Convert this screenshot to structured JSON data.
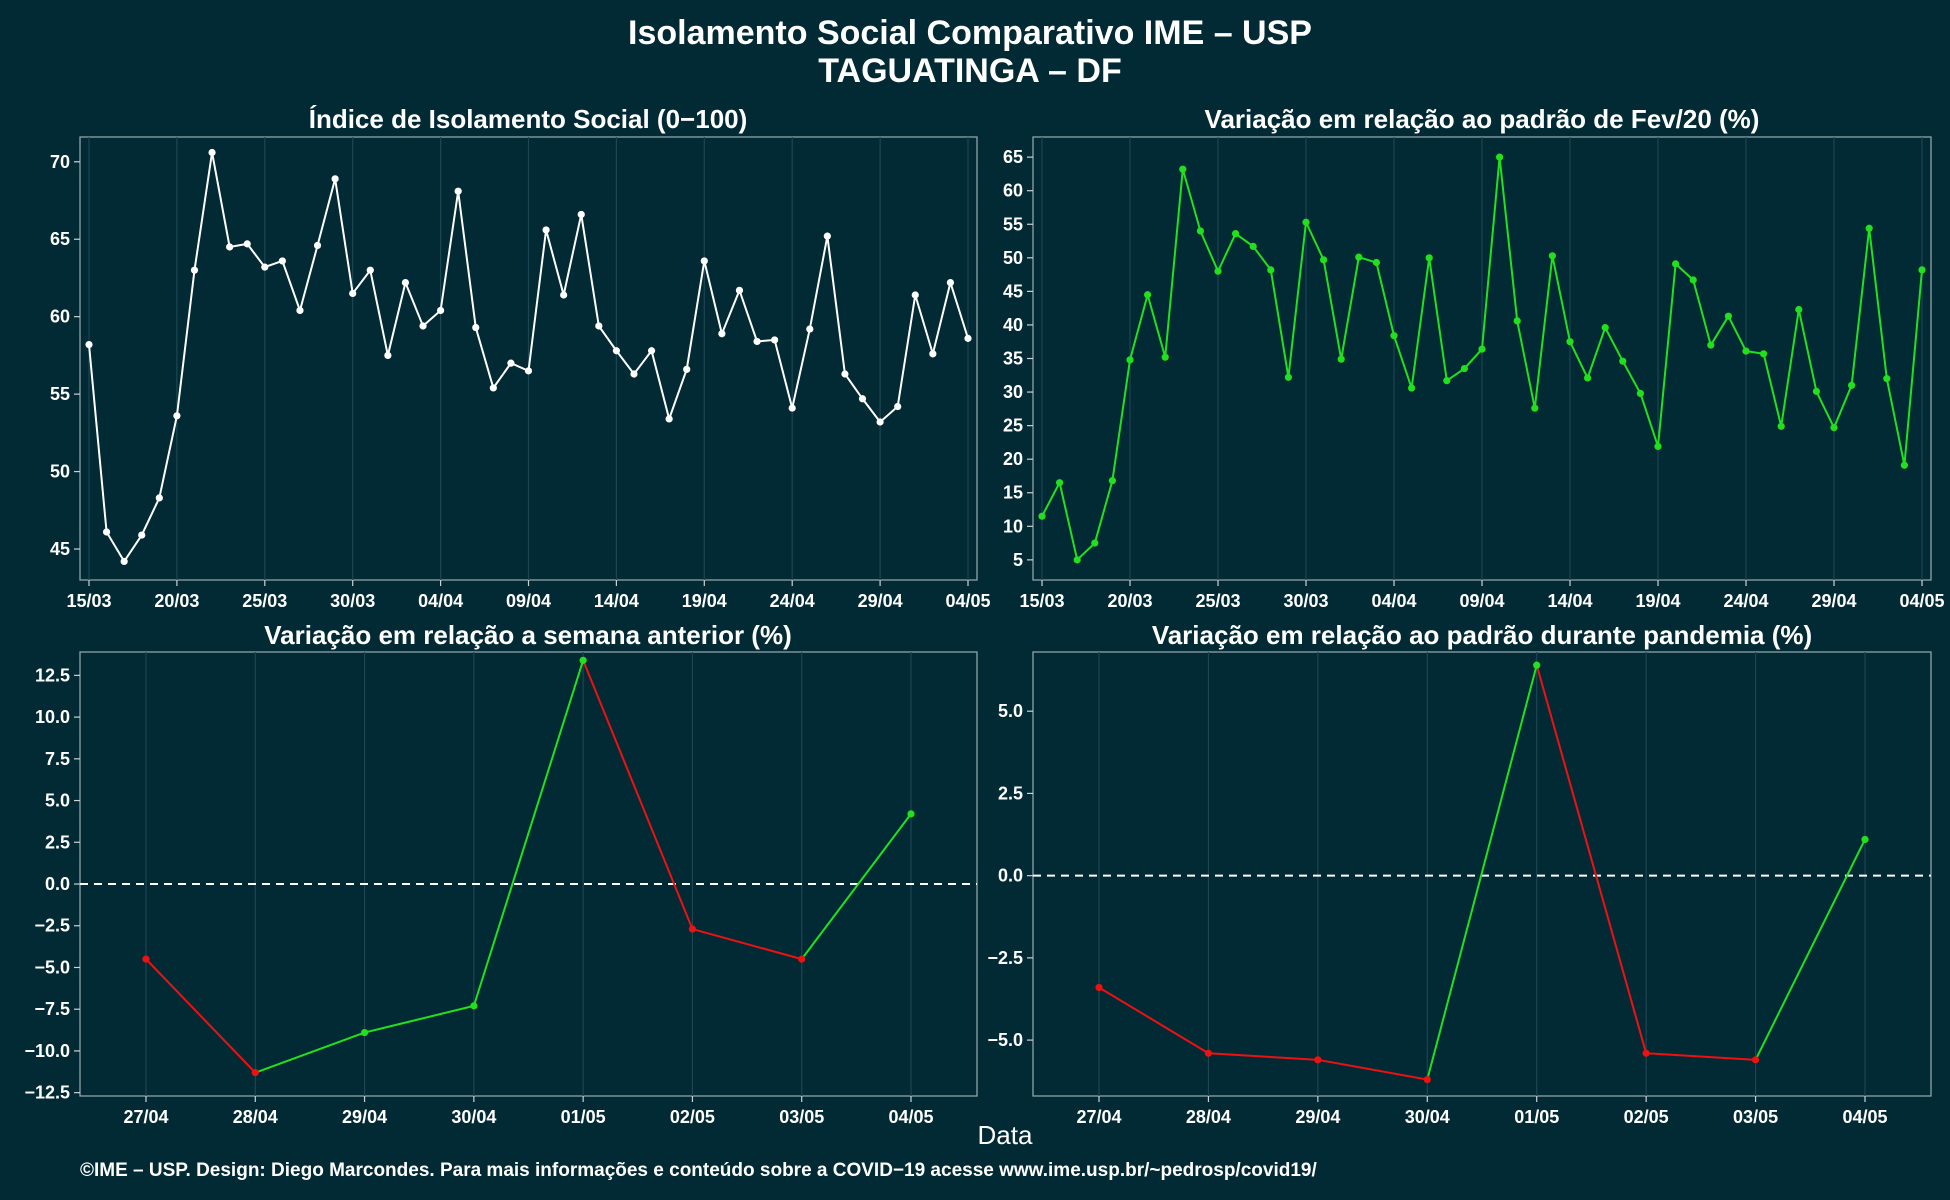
{
  "header": {
    "title_line1": "Isolamento Social Comparativo IME – USP",
    "title_line2": "TAGUATINGA – DF"
  },
  "x_axis_label": "Data",
  "caption": "©IME – USP. Design: Diego Marcondes. Para mais informações e conteúdo sobre a COVID−19 acesse www.ime.usp.br/~pedrosp/covid19/",
  "colors": {
    "background": "#022a35",
    "white_series": "#ffffff",
    "green_series": "#22e01c",
    "increase": "#22e01c",
    "decrease": "#ee1111"
  },
  "chart_data": [
    {
      "id": "index",
      "type": "line",
      "title": "Índice de Isolamento Social (0−100)",
      "color": "#ffffff",
      "x": [
        "15/03",
        "16/03",
        "17/03",
        "18/03",
        "19/03",
        "20/03",
        "21/03",
        "22/03",
        "23/03",
        "24/03",
        "25/03",
        "26/03",
        "27/03",
        "28/03",
        "29/03",
        "30/03",
        "31/03",
        "01/04",
        "02/04",
        "03/04",
        "04/04",
        "05/04",
        "06/04",
        "07/04",
        "08/04",
        "09/04",
        "10/04",
        "11/04",
        "12/04",
        "13/04",
        "14/04",
        "15/04",
        "16/04",
        "17/04",
        "18/04",
        "19/04",
        "20/04",
        "21/04",
        "22/04",
        "23/04",
        "24/04",
        "25/04",
        "26/04",
        "27/04",
        "28/04",
        "29/04",
        "30/04",
        "01/05",
        "02/05",
        "03/05",
        "04/05"
      ],
      "values": [
        58.2,
        46.1,
        44.2,
        45.9,
        48.3,
        53.6,
        63.0,
        70.6,
        64.5,
        64.7,
        63.2,
        63.6,
        60.4,
        64.6,
        68.9,
        61.5,
        63.0,
        57.5,
        62.2,
        59.4,
        60.4,
        68.1,
        59.3,
        55.4,
        57.0,
        56.5,
        65.6,
        61.4,
        66.6,
        59.4,
        57.8,
        56.3,
        57.8,
        53.4,
        56.6,
        63.6,
        58.9,
        61.7,
        58.4,
        58.5,
        54.1,
        59.2,
        65.2,
        56.3,
        54.7,
        53.2,
        54.2,
        61.4,
        57.6,
        62.2,
        58.6
      ],
      "xticks": [
        "15/03",
        "20/03",
        "25/03",
        "30/03",
        "04/04",
        "09/04",
        "14/04",
        "19/04",
        "24/04",
        "29/04",
        "04/05"
      ],
      "yticks": [
        45,
        50,
        55,
        60,
        65,
        70
      ],
      "ylim": [
        43.0,
        71.6
      ]
    },
    {
      "id": "feb",
      "type": "line",
      "title": "Variação em relação ao padrão de Fev/20 (%)",
      "color": "#22e01c",
      "x": [
        "15/03",
        "16/03",
        "17/03",
        "18/03",
        "19/03",
        "20/03",
        "21/03",
        "22/03",
        "23/03",
        "24/03",
        "25/03",
        "26/03",
        "27/03",
        "28/03",
        "29/03",
        "30/03",
        "31/03",
        "01/04",
        "02/04",
        "03/04",
        "04/04",
        "05/04",
        "06/04",
        "07/04",
        "08/04",
        "09/04",
        "10/04",
        "11/04",
        "12/04",
        "13/04",
        "14/04",
        "15/04",
        "16/04",
        "17/04",
        "18/04",
        "19/04",
        "20/04",
        "21/04",
        "22/04",
        "23/04",
        "24/04",
        "25/04",
        "26/04",
        "27/04",
        "28/04",
        "29/04",
        "30/04",
        "01/05",
        "02/05",
        "03/05",
        "04/05"
      ],
      "values": [
        11.5,
        16.5,
        5.0,
        7.5,
        16.8,
        34.8,
        44.5,
        35.2,
        63.2,
        54.0,
        48.0,
        53.6,
        51.7,
        48.2,
        32.2,
        55.3,
        49.7,
        34.9,
        50.1,
        49.3,
        38.4,
        30.6,
        50.0,
        31.7,
        33.5,
        36.4,
        65.0,
        40.6,
        27.6,
        50.3,
        37.5,
        32.1,
        39.6,
        34.6,
        29.8,
        21.9,
        49.1,
        46.7,
        37.0,
        41.3,
        36.1,
        35.7,
        24.9,
        42.3,
        30.1,
        24.7,
        31.0,
        54.4,
        32.0,
        19.1,
        48.2
      ],
      "xticks": [
        "15/03",
        "20/03",
        "25/03",
        "30/03",
        "04/04",
        "09/04",
        "14/04",
        "19/04",
        "24/04",
        "29/04",
        "04/05"
      ],
      "yticks": [
        5,
        10,
        15,
        20,
        25,
        30,
        35,
        40,
        45,
        50,
        55,
        60,
        65
      ],
      "ylim": [
        2.0,
        68.0
      ]
    },
    {
      "id": "week",
      "type": "line",
      "title": "Variação em relação a semana anterior (%)",
      "x": [
        "27/04",
        "28/04",
        "29/04",
        "30/04",
        "01/05",
        "02/05",
        "03/05",
        "04/05"
      ],
      "values": [
        -4.5,
        -11.3,
        -8.9,
        -7.3,
        13.4,
        -2.7,
        -4.5,
        4.2
      ],
      "reference_line": 0,
      "yticks": [
        12.5,
        10.0,
        7.5,
        5.0,
        2.5,
        0.0,
        -2.5,
        -5.0,
        -7.5,
        -10.0,
        -12.5
      ],
      "ytick_labels": [
        "12.5",
        "10.0",
        "7.5",
        "5.0",
        "2.5",
        "0.0",
        "−2.5",
        "−5.0",
        "−7.5",
        "−10.0",
        "−12.5"
      ],
      "ylim": [
        -12.7,
        13.9
      ]
    },
    {
      "id": "pandemic",
      "type": "line",
      "title": "Variação em relação ao padrão durante pandemia (%)",
      "x": [
        "27/04",
        "28/04",
        "29/04",
        "30/04",
        "01/05",
        "02/05",
        "03/05",
        "04/05"
      ],
      "values": [
        -3.4,
        -5.4,
        -5.6,
        -6.2,
        6.4,
        -5.4,
        -5.6,
        1.1
      ],
      "reference_line": 0,
      "yticks": [
        5.0,
        2.5,
        0.0,
        -2.5,
        -5.0
      ],
      "ytick_labels": [
        "5.0",
        "2.5",
        "0.0",
        "−2.5",
        "−5.0"
      ],
      "ylim": [
        -6.7,
        6.8
      ]
    }
  ]
}
